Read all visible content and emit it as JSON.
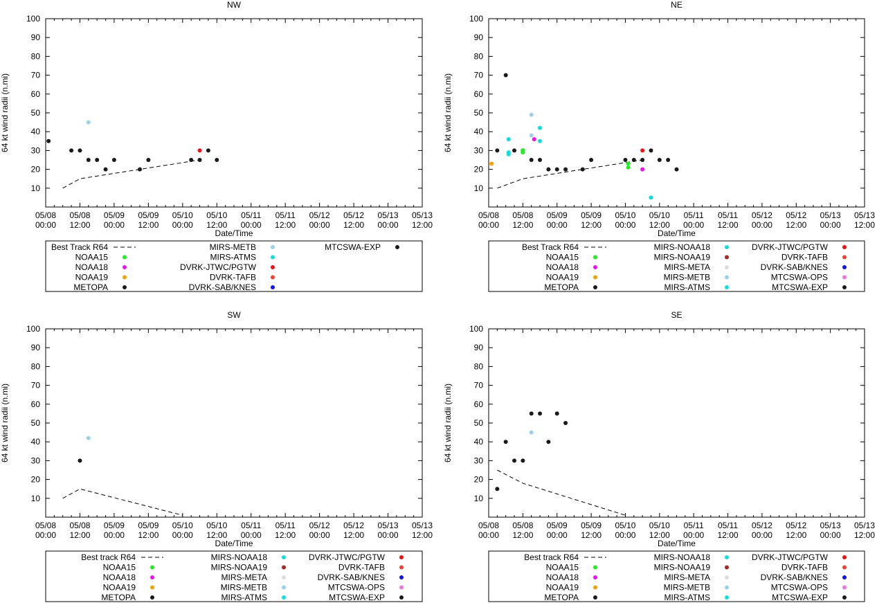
{
  "chart_data": [
    {
      "type": "scatter",
      "title": "NW",
      "xlabel": "Date/Time",
      "ylabel": "64 kt wind radii (n.mi)",
      "ylim": [
        0,
        100
      ],
      "yticks": [
        "10",
        "20",
        "30",
        "40",
        "50",
        "60",
        "70",
        "80",
        "90",
        "100"
      ],
      "xlim_hours": [
        0,
        132
      ],
      "xticks": [
        {
          "date": "05/08",
          "time": "00:00"
        },
        {
          "date": "05/08",
          "time": "12:00"
        },
        {
          "date": "05/09",
          "time": "00:00"
        },
        {
          "date": "05/09",
          "time": "12:00"
        },
        {
          "date": "05/10",
          "time": "00:00"
        },
        {
          "date": "05/10",
          "time": "12:00"
        },
        {
          "date": "05/11",
          "time": "00:00"
        },
        {
          "date": "05/11",
          "time": "12:00"
        },
        {
          "date": "05/12",
          "time": "00:00"
        },
        {
          "date": "05/12",
          "time": "12:00"
        },
        {
          "date": "05/13",
          "time": "00:00"
        },
        {
          "date": "05/13",
          "time": "12:00"
        }
      ],
      "best_track": {
        "name": "Best Track R64",
        "hours": [
          6,
          12,
          54
        ],
        "values": [
          10,
          15,
          25
        ]
      },
      "series": [
        {
          "name": "MTCSWA-EXP",
          "color": "#1a1a1a",
          "points": [
            [
              1,
              35
            ],
            [
              9,
              30
            ],
            [
              12,
              30
            ],
            [
              15,
              25
            ],
            [
              18,
              25
            ],
            [
              21,
              20
            ],
            [
              24,
              25
            ],
            [
              33,
              20
            ],
            [
              36,
              25
            ],
            [
              51,
              25
            ],
            [
              54,
              25
            ],
            [
              57,
              30
            ],
            [
              60,
              25
            ]
          ]
        },
        {
          "name": "MIRS-METB",
          "color": "#9ed0e6",
          "points": [
            [
              15,
              45
            ]
          ]
        },
        {
          "name": "DVRK-JTWC/PGTW",
          "color": "#ee1111",
          "points": [
            [
              54,
              30
            ]
          ]
        }
      ],
      "legend_columns": [
        [
          {
            "label": "Best Track R64",
            "kind": "dash"
          },
          {
            "label": "NOAA15",
            "kind": "dot",
            "color": "#22ee22"
          },
          {
            "label": "NOAA18",
            "kind": "dot",
            "color": "#ee11ee"
          },
          {
            "label": "NOAA19",
            "kind": "dot",
            "color": "#f5a000"
          },
          {
            "label": "METOPA",
            "kind": "dot",
            "color": "#1a1a1a"
          }
        ],
        [
          {
            "label": "MIRS-METB",
            "kind": "dot",
            "color": "#9ed0e6"
          },
          {
            "label": "MIRS-ATMS",
            "kind": "dot",
            "color": "#11dddd"
          },
          {
            "label": "DVRK-JTWC/PGTW",
            "kind": "dot",
            "color": "#ee1111"
          },
          {
            "label": "DVRK-TAFB",
            "kind": "dot",
            "color": "#ee4433"
          },
          {
            "label": "DVRK-SAB/KNES",
            "kind": "dot",
            "color": "#1111ee"
          }
        ],
        [
          {
            "label": "MTCSWA-EXP",
            "kind": "dot",
            "color": "#1a1a1a"
          }
        ]
      ]
    },
    {
      "type": "scatter",
      "title": "NE",
      "xlabel": "Date/Time",
      "ylabel": "64 kt wind radii (n.mi)",
      "ylim": [
        0,
        100
      ],
      "yticks": [
        "10",
        "20",
        "30",
        "40",
        "50",
        "60",
        "70",
        "80",
        "90",
        "100"
      ],
      "xlim_hours": [
        0,
        132
      ],
      "xticks": [
        {
          "date": "05/08",
          "time": "00:00"
        },
        {
          "date": "05/08",
          "time": "12:00"
        },
        {
          "date": "05/09",
          "time": "00:00"
        },
        {
          "date": "05/09",
          "time": "12:00"
        },
        {
          "date": "05/10",
          "time": "00:00"
        },
        {
          "date": "05/10",
          "time": "12:00"
        },
        {
          "date": "05/11",
          "time": "00:00"
        },
        {
          "date": "05/11",
          "time": "12:00"
        },
        {
          "date": "05/12",
          "time": "00:00"
        },
        {
          "date": "05/12",
          "time": "12:00"
        },
        {
          "date": "05/13",
          "time": "00:00"
        },
        {
          "date": "05/13",
          "time": "12:00"
        }
      ],
      "best_track": {
        "name": "Best Track R64",
        "hours": [
          3,
          12,
          54
        ],
        "values": [
          10,
          15,
          25
        ]
      },
      "series": [
        {
          "name": "MTCSWA-EXP",
          "color": "#1a1a1a",
          "points": [
            [
              6,
              70
            ],
            [
              3,
              30
            ],
            [
              9,
              30
            ],
            [
              12,
              30
            ],
            [
              15,
              25
            ],
            [
              18,
              25
            ],
            [
              21,
              20
            ],
            [
              24,
              20
            ],
            [
              27,
              20
            ],
            [
              33,
              20
            ],
            [
              36,
              25
            ],
            [
              48,
              25
            ],
            [
              51,
              25
            ],
            [
              54,
              25
            ],
            [
              57,
              30
            ],
            [
              60,
              25
            ],
            [
              63,
              25
            ],
            [
              66,
              20
            ]
          ]
        },
        {
          "name": "METOPA",
          "color": "#1a1a1a",
          "points": [
            [
              12,
              30
            ]
          ]
        },
        {
          "name": "NOAA19",
          "color": "#f5a000",
          "points": [
            [
              1,
              23
            ]
          ]
        },
        {
          "name": "MIRS-ATMS",
          "color": "#11dddd",
          "points": [
            [
              7,
              36
            ],
            [
              7,
              28
            ],
            [
              7,
              29
            ],
            [
              18,
              42
            ],
            [
              18,
              35
            ],
            [
              57,
              5
            ]
          ]
        },
        {
          "name": "MIRS-METB",
          "color": "#9ed0e6",
          "points": [
            [
              15,
              49
            ],
            [
              15,
              38
            ]
          ]
        },
        {
          "name": "NOAA15",
          "color": "#22ee22",
          "points": [
            [
              12,
              29
            ],
            [
              12,
              30
            ],
            [
              49,
              21
            ],
            [
              49,
              23
            ]
          ]
        },
        {
          "name": "NOAA18",
          "color": "#ee11ee",
          "points": [
            [
              16,
              36
            ],
            [
              54,
              20
            ]
          ]
        },
        {
          "name": "DVRK-JTWC/PGTW",
          "color": "#ee1111",
          "points": [
            [
              54,
              30
            ]
          ]
        }
      ],
      "legend_columns": [
        [
          {
            "label": "Best Track R64",
            "kind": "dash"
          },
          {
            "label": "NOAA15",
            "kind": "dot",
            "color": "#22ee22"
          },
          {
            "label": "NOAA18",
            "kind": "dot",
            "color": "#ee11ee"
          },
          {
            "label": "NOAA19",
            "kind": "dot",
            "color": "#f5a000"
          },
          {
            "label": "METOPA",
            "kind": "dot",
            "color": "#1a1a1a"
          }
        ],
        [
          {
            "label": "MIRS-NOAA18",
            "kind": "dot",
            "color": "#11dddd"
          },
          {
            "label": "MIRS-NOAA19",
            "kind": "dot",
            "color": "#a52a2a"
          },
          {
            "label": "MIRS-META",
            "kind": "dot",
            "color": "#dddddd"
          },
          {
            "label": "MIRS-METB",
            "kind": "dot",
            "color": "#9ed0e6"
          },
          {
            "label": "MIRS-ATMS",
            "kind": "dot",
            "color": "#11dddd"
          }
        ],
        [
          {
            "label": "DVRK-JTWC/PGTW",
            "kind": "dot",
            "color": "#ee1111"
          },
          {
            "label": "DVRK-TAFB",
            "kind": "dot",
            "color": "#ee4433"
          },
          {
            "label": "DVRK-SAB/KNES",
            "kind": "dot",
            "color": "#1111ee"
          },
          {
            "label": "MTCSWA-OPS",
            "kind": "dot",
            "color": "#ee77dd"
          },
          {
            "label": "MTCSWA-EXP",
            "kind": "dot",
            "color": "#1a1a1a"
          }
        ]
      ]
    },
    {
      "type": "scatter",
      "title": "SW",
      "xlabel": "Date/Time",
      "ylabel": "64 kt wind radii (n.mi)",
      "ylim": [
        0,
        100
      ],
      "yticks": [
        "10",
        "20",
        "30",
        "40",
        "50",
        "60",
        "70",
        "80",
        "90",
        "100"
      ],
      "xlim_hours": [
        0,
        132
      ],
      "xticks": [
        {
          "date": "05/08",
          "time": "00:00"
        },
        {
          "date": "05/08",
          "time": "12:00"
        },
        {
          "date": "05/09",
          "time": "00:00"
        },
        {
          "date": "05/09",
          "time": "12:00"
        },
        {
          "date": "05/10",
          "time": "00:00"
        },
        {
          "date": "05/10",
          "time": "12:00"
        },
        {
          "date": "05/11",
          "time": "00:00"
        },
        {
          "date": "05/11",
          "time": "12:00"
        },
        {
          "date": "05/12",
          "time": "00:00"
        },
        {
          "date": "05/12",
          "time": "12:00"
        },
        {
          "date": "05/13",
          "time": "00:00"
        },
        {
          "date": "05/13",
          "time": "12:00"
        }
      ],
      "best_track": {
        "name": "Best track R64",
        "hours": [
          6,
          12,
          48
        ],
        "values": [
          10,
          15,
          1
        ]
      },
      "series": [
        {
          "name": "METOPA",
          "color": "#1a1a1a",
          "points": [
            [
              12,
              30
            ]
          ]
        },
        {
          "name": "MIRS-METB",
          "color": "#9ed0e6",
          "points": [
            [
              15,
              42
            ]
          ]
        }
      ],
      "legend_columns": [
        [
          {
            "label": "Best track R64",
            "kind": "dash"
          },
          {
            "label": "NOAA15",
            "kind": "dot",
            "color": "#22ee22"
          },
          {
            "label": "NOAA18",
            "kind": "dot",
            "color": "#ee11ee"
          },
          {
            "label": "NOAA19",
            "kind": "dot",
            "color": "#f5a000"
          },
          {
            "label": "METOPA",
            "kind": "dot",
            "color": "#1a1a1a"
          }
        ],
        [
          {
            "label": "MIRS-NOAA18",
            "kind": "dot",
            "color": "#11dddd"
          },
          {
            "label": "MIRS-NOAA19",
            "kind": "dot",
            "color": "#a52a2a"
          },
          {
            "label": "MIRS-META",
            "kind": "dot",
            "color": "#dddddd"
          },
          {
            "label": "MIRS-METB",
            "kind": "dot",
            "color": "#9ed0e6"
          },
          {
            "label": "MIRS-ATMS",
            "kind": "dot",
            "color": "#11dddd"
          }
        ],
        [
          {
            "label": "DVRK-JTWC/PGTW",
            "kind": "dot",
            "color": "#ee1111"
          },
          {
            "label": "DVRK-TAFB",
            "kind": "dot",
            "color": "#ee4433"
          },
          {
            "label": "DVRK-SAB/KNES",
            "kind": "dot",
            "color": "#1111ee"
          },
          {
            "label": "MTCSWA-OPS",
            "kind": "dot",
            "color": "#ee77dd"
          },
          {
            "label": "MTCSWA-EXP",
            "kind": "dot",
            "color": "#1a1a1a"
          }
        ]
      ]
    },
    {
      "type": "scatter",
      "title": "SE",
      "xlabel": "Date/Time",
      "ylabel": "64 kt wind radii (n.mi)",
      "ylim": [
        0,
        100
      ],
      "yticks": [
        "10",
        "20",
        "30",
        "40",
        "50",
        "60",
        "70",
        "80",
        "90",
        "100"
      ],
      "xlim_hours": [
        0,
        132
      ],
      "xticks": [
        {
          "date": "05/08",
          "time": "00:00"
        },
        {
          "date": "05/08",
          "time": "12:00"
        },
        {
          "date": "05/09",
          "time": "00:00"
        },
        {
          "date": "05/09",
          "time": "12:00"
        },
        {
          "date": "05/10",
          "time": "00:00"
        },
        {
          "date": "05/10",
          "time": "12:00"
        },
        {
          "date": "05/11",
          "time": "00:00"
        },
        {
          "date": "05/11",
          "time": "12:00"
        },
        {
          "date": "05/12",
          "time": "00:00"
        },
        {
          "date": "05/12",
          "time": "12:00"
        },
        {
          "date": "05/13",
          "time": "00:00"
        },
        {
          "date": "05/13",
          "time": "12:00"
        }
      ],
      "best_track": {
        "name": "Best track R64",
        "hours": [
          3,
          12,
          48
        ],
        "values": [
          25,
          18,
          1
        ]
      },
      "series": [
        {
          "name": "MTCSWA-EXP",
          "color": "#1a1a1a",
          "points": [
            [
              3,
              15
            ],
            [
              6,
              40
            ],
            [
              9,
              30
            ],
            [
              12,
              30
            ],
            [
              15,
              55
            ],
            [
              18,
              55
            ],
            [
              21,
              40
            ],
            [
              24,
              55
            ],
            [
              27,
              50
            ]
          ]
        },
        {
          "name": "MIRS-METB",
          "color": "#9ed0e6",
          "points": [
            [
              15,
              45
            ]
          ]
        }
      ],
      "legend_columns": [
        [
          {
            "label": "Best track R64",
            "kind": "dash"
          },
          {
            "label": "NOAA15",
            "kind": "dot",
            "color": "#22ee22"
          },
          {
            "label": "NOAA18",
            "kind": "dot",
            "color": "#ee11ee"
          },
          {
            "label": "NOAA19",
            "kind": "dot",
            "color": "#f5a000"
          },
          {
            "label": "METOPA",
            "kind": "dot",
            "color": "#1a1a1a"
          }
        ],
        [
          {
            "label": "MIRS-NOAA18",
            "kind": "dot",
            "color": "#11dddd"
          },
          {
            "label": "MIRS-NOAA19",
            "kind": "dot",
            "color": "#a52a2a"
          },
          {
            "label": "MIRS-META",
            "kind": "dot",
            "color": "#dddddd"
          },
          {
            "label": "MIRS-METB",
            "kind": "dot",
            "color": "#9ed0e6"
          },
          {
            "label": "MIRS-ATMS",
            "kind": "dot",
            "color": "#11dddd"
          }
        ],
        [
          {
            "label": "DVRK-JTWC/PGTW",
            "kind": "dot",
            "color": "#ee1111"
          },
          {
            "label": "DVRK-TAFB",
            "kind": "dot",
            "color": "#ee4433"
          },
          {
            "label": "DVRK-SAB/KNES",
            "kind": "dot",
            "color": "#1111ee"
          },
          {
            "label": "MTCSWA-OPS",
            "kind": "dot",
            "color": "#ee77dd"
          },
          {
            "label": "MTCSWA-EXP",
            "kind": "dot",
            "color": "#1a1a1a"
          }
        ]
      ]
    }
  ]
}
